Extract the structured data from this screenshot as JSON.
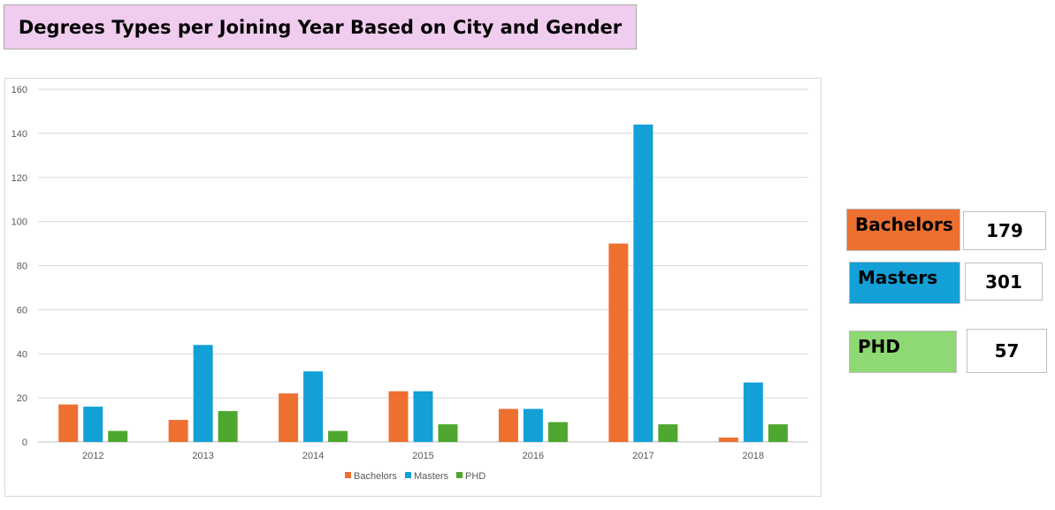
{
  "title": "Degrees Types per Joining Year Based on City and Gender",
  "kpis": [
    {
      "label": "Bachelors",
      "value": "179",
      "color": "#ed7031"
    },
    {
      "label": "Masters",
      "value": "301",
      "color": "#12a0d7"
    },
    {
      "label": "PHD",
      "value": "57",
      "color": "#8ed973"
    }
  ],
  "chart_data": {
    "type": "bar",
    "categories": [
      "2012",
      "2013",
      "2014",
      "2015",
      "2016",
      "2017",
      "2018"
    ],
    "series": [
      {
        "name": "Bachelors",
        "color": "#ed7031",
        "values": [
          17,
          10,
          22,
          23,
          15,
          90,
          2
        ]
      },
      {
        "name": "Masters",
        "color": "#12a0d7",
        "values": [
          16,
          44,
          32,
          23,
          15,
          144,
          27
        ]
      },
      {
        "name": "PHD",
        "color": "#4ea72e",
        "values": [
          5,
          14,
          5,
          8,
          9,
          8,
          8
        ]
      }
    ],
    "ylim": [
      0,
      160
    ],
    "yticks": [
      "0",
      "20",
      "40",
      "60",
      "80",
      "100",
      "120",
      "140",
      "160"
    ],
    "grid": true,
    "legend": "bottom"
  }
}
